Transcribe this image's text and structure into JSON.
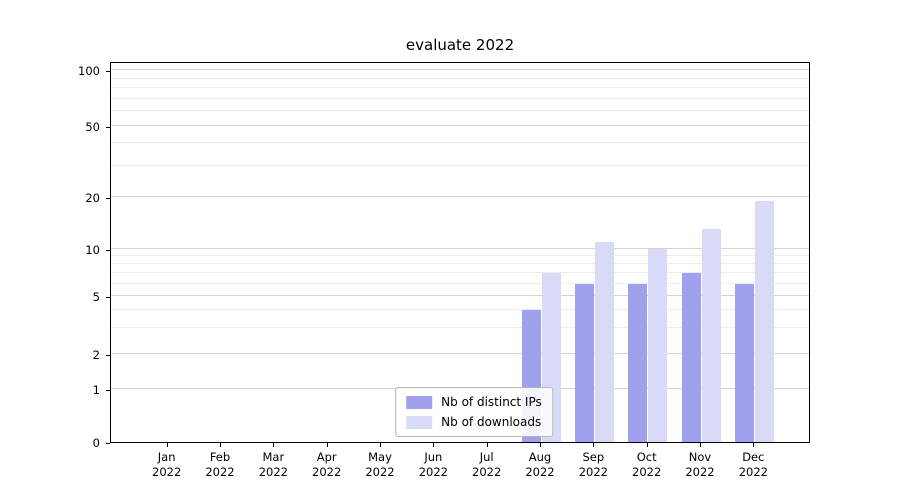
{
  "chart_data": {
    "type": "bar",
    "title": "evaluate 2022",
    "categories": [
      "Jan 2022",
      "Feb 2022",
      "Mar 2022",
      "Apr 2022",
      "May 2022",
      "Jun 2022",
      "Jul 2022",
      "Aug 2022",
      "Sep 2022",
      "Oct 2022",
      "Nov 2022",
      "Dec 2022"
    ],
    "series": [
      {
        "name": "Nb of distinct IPs",
        "color": "#a0a0ee",
        "values": [
          0,
          0,
          0,
          0,
          0,
          0,
          0,
          4,
          6,
          6,
          7,
          6
        ]
      },
      {
        "name": "Nb of downloads",
        "color": "#d9d9f8",
        "values": [
          0,
          0,
          0,
          0,
          0,
          0,
          0,
          7,
          11,
          10,
          13,
          19
        ]
      }
    ],
    "y_ticks": [
      0,
      1,
      2,
      5,
      10,
      20,
      50,
      100
    ],
    "y_minor_ticks": [
      3,
      4,
      6,
      7,
      8,
      9,
      30,
      40,
      60,
      70,
      80,
      90
    ],
    "yscale": "symlog",
    "ylim": [
      0,
      110
    ],
    "grid": "horizontal",
    "legend_position": "lower-center-inside"
  }
}
